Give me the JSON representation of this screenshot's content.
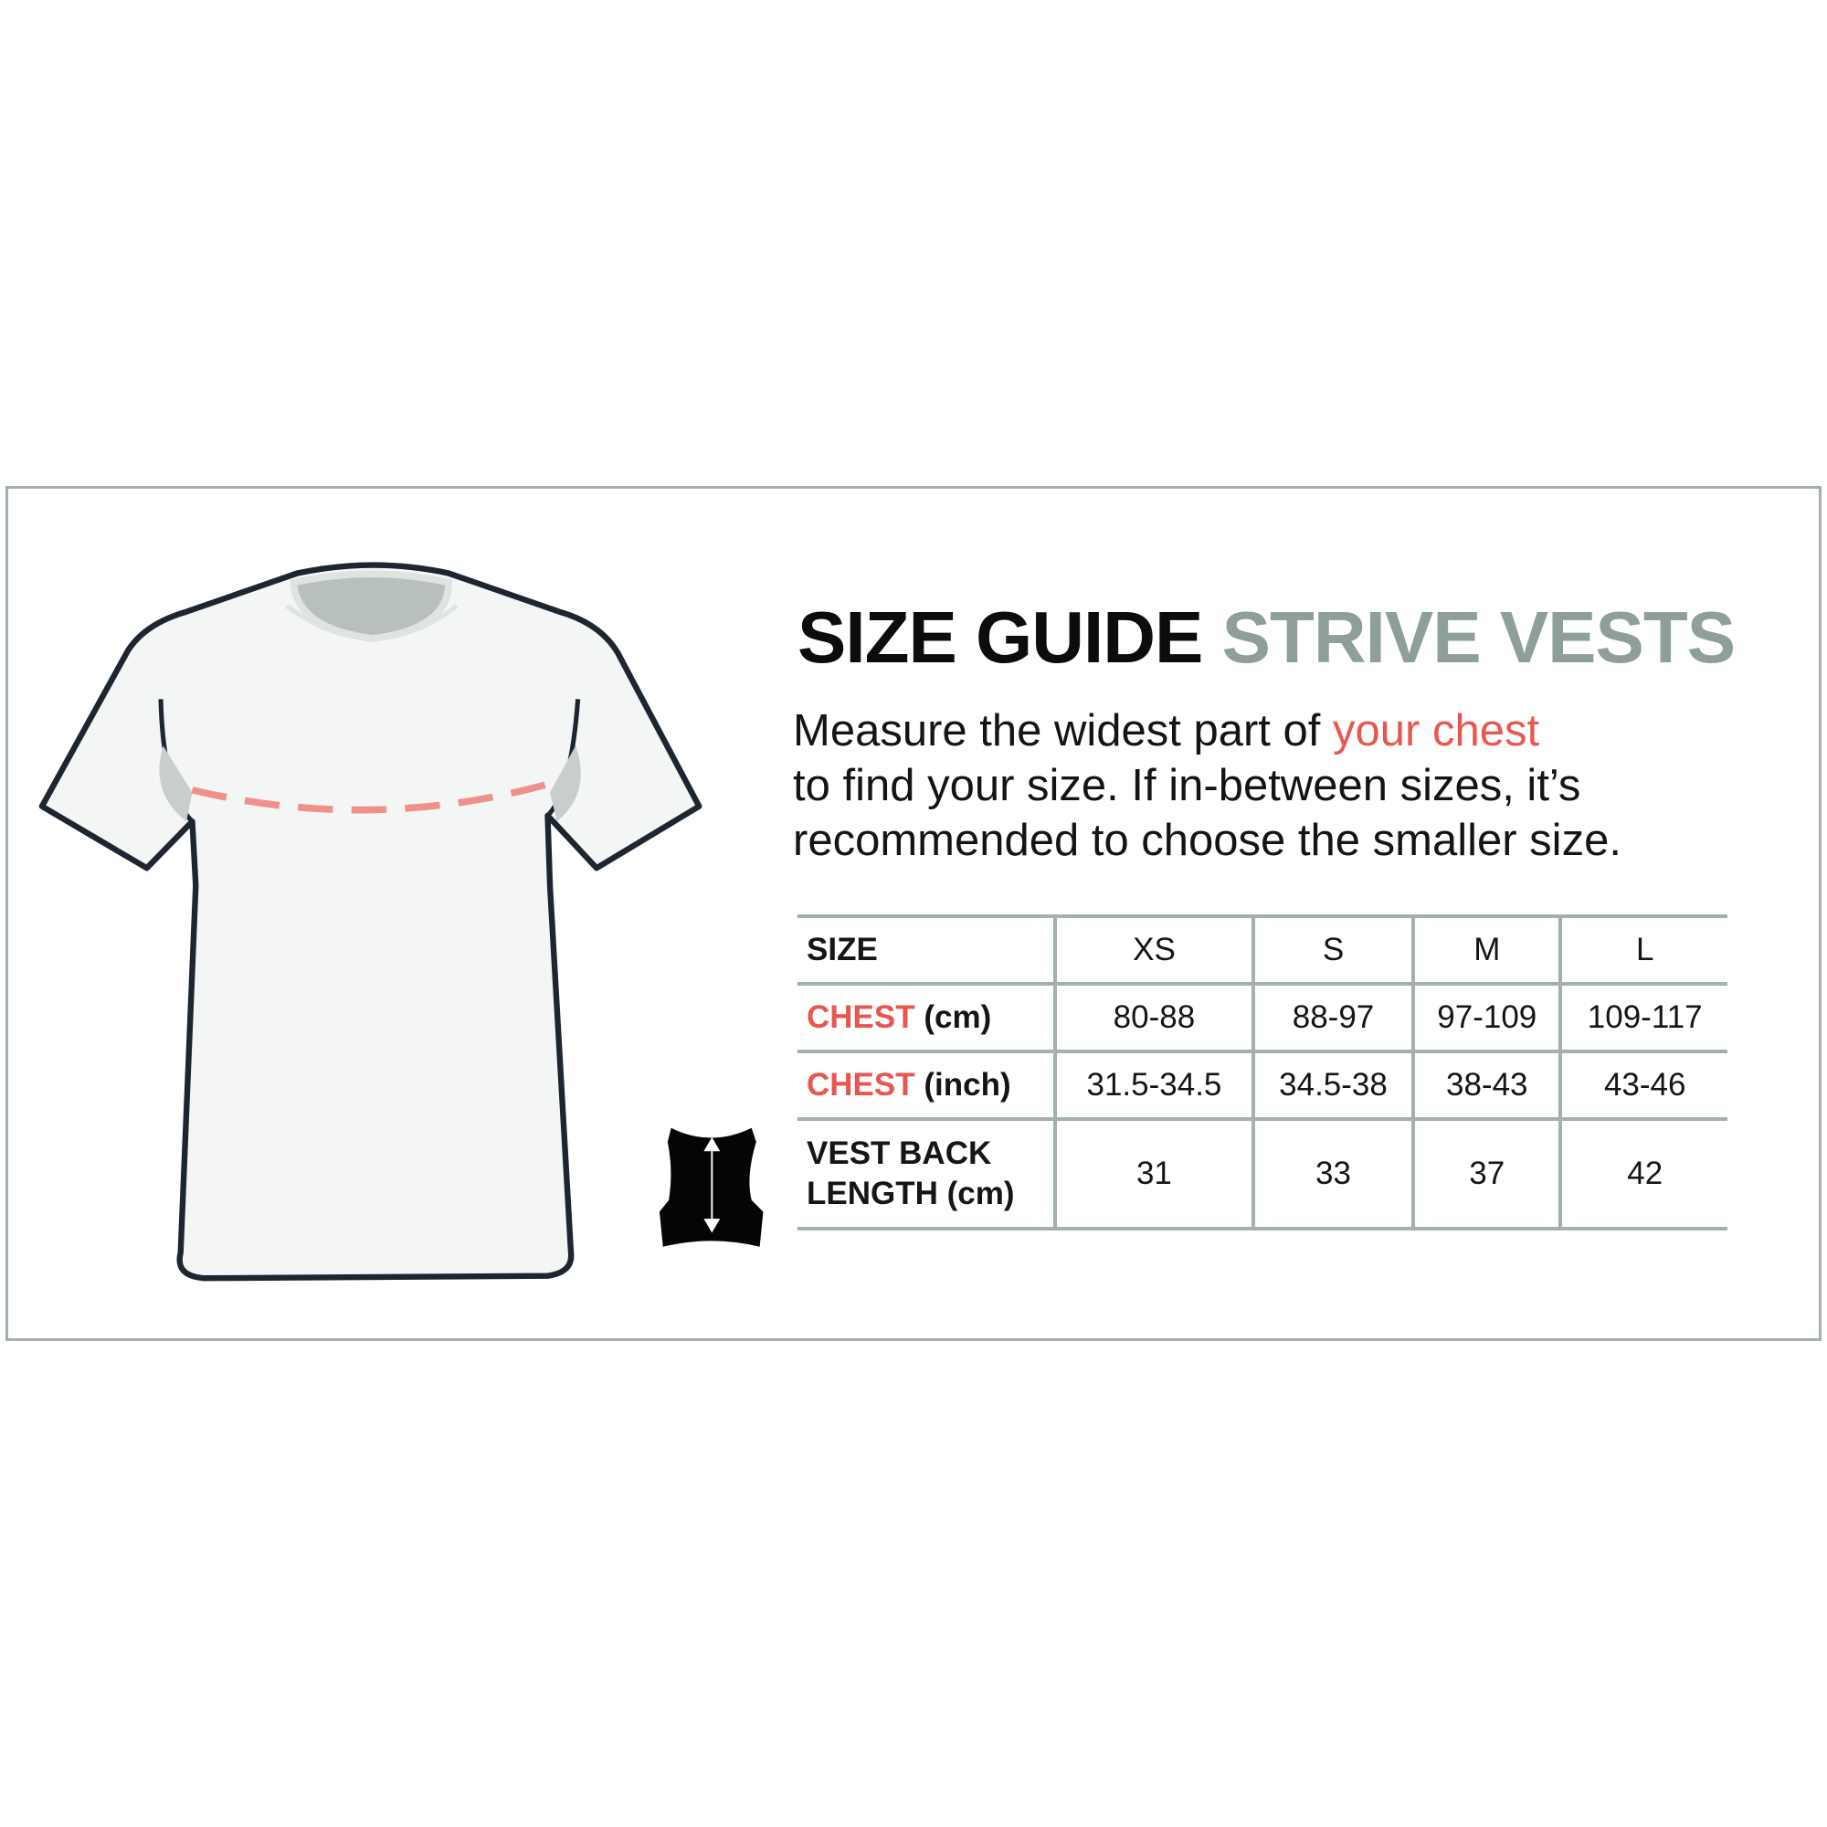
{
  "title": {
    "part1": "SIZE GUIDE",
    "part2": "STRIVE VESTS"
  },
  "description": {
    "line1_a": "Measure the widest part of ",
    "line1_highlight": "your chest",
    "line2": "to find your size. If in-between sizes, it’s",
    "line3": "recommended to choose the smaller size."
  },
  "table": {
    "header": {
      "label": "SIZE",
      "sizes": [
        "XS",
        "S",
        "M",
        "L"
      ]
    },
    "rows": [
      {
        "label_highlight": "CHEST",
        "label_rest": " (cm)",
        "values": [
          "80-88",
          "88-97",
          "97-109",
          "109-117"
        ]
      },
      {
        "label_highlight": "CHEST",
        "label_rest": " (inch)",
        "values": [
          "31.5-34.5",
          "34.5-38",
          "38-43",
          "43-46"
        ]
      },
      {
        "label_line1": "VEST BACK",
        "label_line2": "LENGTH (cm)",
        "values": [
          "31",
          "33",
          "37",
          "42"
        ]
      }
    ]
  },
  "icons": [
    "t-shirt-illustration",
    "vest-back-icon",
    "double-arrow-icon"
  ],
  "colors": {
    "accent_red": "#e8574f",
    "title_gray": "#8e9e9b",
    "border_gray": "#a3b0ad"
  }
}
